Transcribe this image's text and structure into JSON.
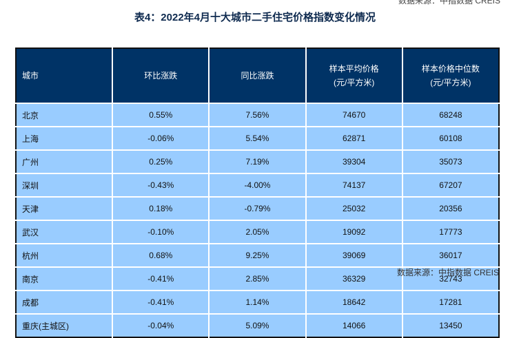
{
  "clipped_header_text": "数据来源：中指数据 CREIS",
  "title": "表4：2022年4月十大城市二手住宅价格指数变化情况",
  "table": {
    "headers": [
      {
        "line1": "城市",
        "line2": ""
      },
      {
        "line1": "环比涨跌",
        "line2": ""
      },
      {
        "line1": "同比涨跌",
        "line2": ""
      },
      {
        "line1": "样本平均价格",
        "line2": "(元/平方米)"
      },
      {
        "line1": "样本价格中位数",
        "line2": "(元/平方米)"
      }
    ],
    "rows": [
      [
        "北京",
        "0.55%",
        "7.56%",
        "74670",
        "68248"
      ],
      [
        "上海",
        "-0.06%",
        "5.54%",
        "62871",
        "60108"
      ],
      [
        "广州",
        "0.25%",
        "7.19%",
        "39304",
        "35073"
      ],
      [
        "深圳",
        "-0.43%",
        "-4.00%",
        "74137",
        "67207"
      ],
      [
        "天津",
        "0.18%",
        "-0.79%",
        "25032",
        "20356"
      ],
      [
        "武汉",
        "-0.10%",
        "2.05%",
        "19092",
        "17773"
      ],
      [
        "杭州",
        "0.68%",
        "9.25%",
        "39069",
        "36017"
      ],
      [
        "南京",
        "-0.41%",
        "2.85%",
        "36329",
        "32743"
      ],
      [
        "成都",
        "-0.41%",
        "1.14%",
        "18642",
        "17281"
      ],
      [
        "重庆(主城区)",
        "-0.04%",
        "5.09%",
        "14066",
        "13450"
      ]
    ]
  },
  "source": "数据来源：中指数据 CREIS",
  "colors": {
    "header_bg": "#003366",
    "row_bg": "#99ccff",
    "title": "#0e2a4f"
  }
}
